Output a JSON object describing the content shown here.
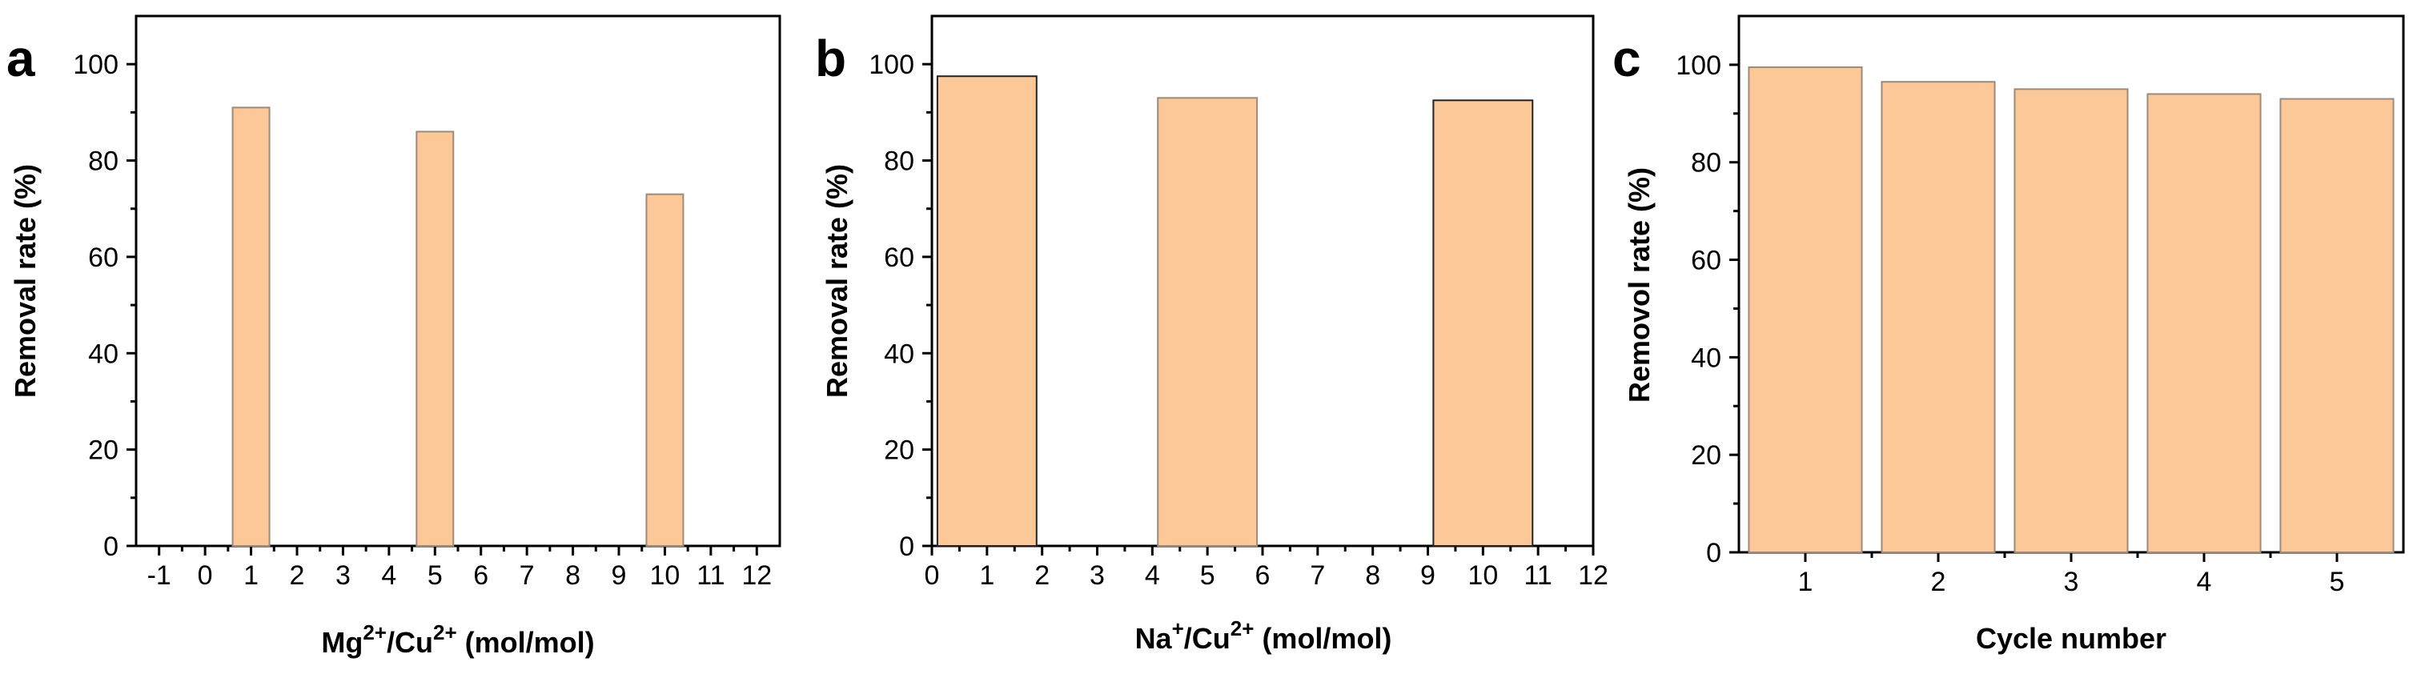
{
  "colors": {
    "bar_fill": "#FCC898",
    "bar_edge_light": "#9E8A78",
    "bar_edge_dark": "#222222",
    "axis": "#000000"
  },
  "chart_data": [
    {
      "type": "bar",
      "panel_label": "a",
      "xlabel_main": "Mg",
      "xlabel_sup1": "2+",
      "xlabel_mid": "/Cu",
      "xlabel_sup2": "2+",
      "xlabel_tail": "  (mol/mol)",
      "ylabel": "Removal rate (%)",
      "xlim": [
        -1.5,
        12.5
      ],
      "ylim": [
        0,
        110
      ],
      "xticks": [
        -1,
        0,
        1,
        2,
        3,
        4,
        5,
        6,
        7,
        8,
        9,
        10,
        11,
        12
      ],
      "yticks": [
        0,
        20,
        40,
        60,
        80,
        100
      ],
      "bar_width": 0.8,
      "edge": "light",
      "bars": [
        {
          "x": 1,
          "value": 91
        },
        {
          "x": 5,
          "value": 86
        },
        {
          "x": 10,
          "value": 73
        }
      ]
    },
    {
      "type": "bar",
      "panel_label": "b",
      "xlabel_main": "Na",
      "xlabel_sup1": "+",
      "xlabel_mid": "/Cu",
      "xlabel_sup2": "2+",
      "xlabel_tail": " (mol/mol)",
      "ylabel": "Removal rate (%)",
      "xlim": [
        0,
        12
      ],
      "ylim": [
        0,
        110
      ],
      "xticks": [
        0,
        1,
        2,
        3,
        4,
        5,
        6,
        7,
        8,
        9,
        10,
        11,
        12
      ],
      "yticks": [
        0,
        20,
        40,
        60,
        80,
        100
      ],
      "bar_width": 1.8,
      "edge": "mixed",
      "bars": [
        {
          "x": 1,
          "value": 97.5
        },
        {
          "x": 5,
          "value": 93
        },
        {
          "x": 10,
          "value": 92.5
        }
      ]
    },
    {
      "type": "bar",
      "panel_label": "c",
      "xlabel": "Cycle number",
      "ylabel": "Removol rate (%)",
      "xlim": [
        0.5,
        5.5
      ],
      "ylim": [
        0,
        110
      ],
      "xticks": [
        1,
        2,
        3,
        4,
        5
      ],
      "yticks": [
        0,
        20,
        40,
        60,
        80,
        100
      ],
      "bar_width": 0.85,
      "edge": "light",
      "bars": [
        {
          "x": 1,
          "value": 99.5
        },
        {
          "x": 2,
          "value": 96.5
        },
        {
          "x": 3,
          "value": 95
        },
        {
          "x": 4,
          "value": 94
        },
        {
          "x": 5,
          "value": 93
        }
      ]
    }
  ]
}
